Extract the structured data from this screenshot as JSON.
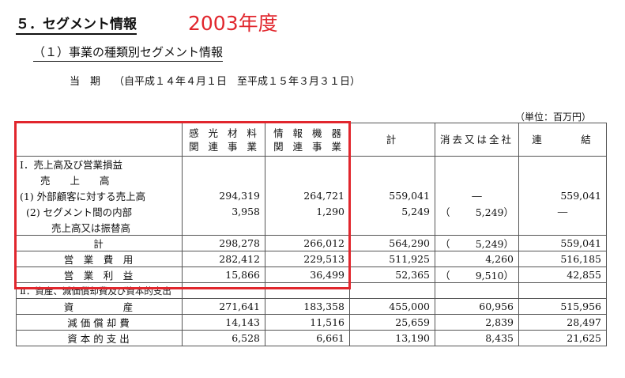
{
  "section_title": "５．セグメント情報",
  "year_label": "2003年度",
  "subtitle": "（１）事業の種類別セグメント情報",
  "period": {
    "label": "当　期",
    "range": "（自平成１４年４月１日　至平成１５年３月３１日）"
  },
  "unit": "（単位：百万円）",
  "columns": {
    "photo": [
      "感 光 材 料",
      "関 連 事 業"
    ],
    "info": [
      "情 報 機 器",
      "関 連 事 業"
    ],
    "total": "計",
    "elim": "消去又は全社",
    "consol": "連　　　結"
  },
  "section1": {
    "heading": "Ⅰ．売上高及び営業損益",
    "sales_label": "売　　上　　高",
    "external": {
      "label": "(1) 外部顧客に対する売上高",
      "photo": "294,319",
      "info": "264,721",
      "total": "559,041",
      "elim": "―",
      "consol": "559,041"
    },
    "intersegment": {
      "label_1": "(2) セグメント間の内部",
      "label_2": "売上高又は振替高",
      "photo": "3,958",
      "info": "1,290",
      "total": "5,249",
      "elim": "5,249",
      "consol": "―"
    },
    "subtotal": {
      "label": "計",
      "photo": "298,278",
      "info": "266,012",
      "total": "564,290",
      "elim": "5,249",
      "consol": "559,041"
    },
    "opex": {
      "label": "営　業　費　用",
      "photo": "282,412",
      "info": "229,513",
      "total": "511,925",
      "elim": "4,260",
      "consol": "516,185"
    },
    "opinc": {
      "label": "営　業　利　益",
      "photo": "15,866",
      "info": "36,499",
      "total": "52,365",
      "elim": "9,510",
      "consol": "42,855"
    }
  },
  "section2": {
    "heading": "Ⅱ．資産、減価償却費及び資本的支出",
    "assets": {
      "label": "資　　　　　産",
      "photo": "271,641",
      "info": "183,358",
      "total": "455,000",
      "elim": "60,956",
      "consol": "515,956"
    },
    "depreciation": {
      "label": "減 価 償 却 費",
      "photo": "14,143",
      "info": "11,516",
      "total": "25,659",
      "elim": "2,839",
      "consol": "28,497"
    },
    "capex": {
      "label": "資 本 的 支 出",
      "photo": "6,528",
      "info": "6,661",
      "total": "13,190",
      "elim": "8,435",
      "consol": "21,625"
    }
  },
  "paren_open": "（",
  "paren_close": "）",
  "highlight_color": "#e1262d"
}
